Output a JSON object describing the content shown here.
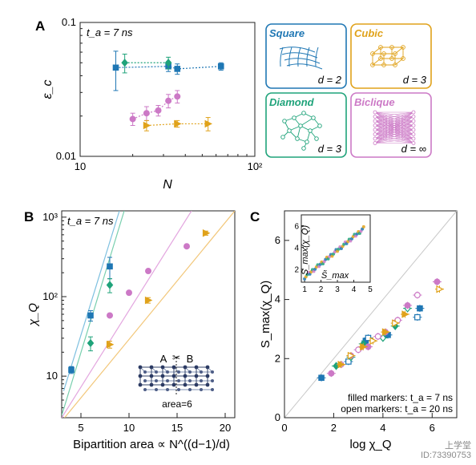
{
  "panels": {
    "A": {
      "letter": "A",
      "annotation": "t_a = 7 ns",
      "xlabel": "N",
      "ylabel": "ε_c",
      "x_ticks": [
        "10",
        "10²"
      ],
      "y_ticks": [
        "0.1",
        "0.01"
      ]
    },
    "B": {
      "letter": "B",
      "annotation": "t_a = 7 ns",
      "xlabel": "Bipartition area ∝ N^((d−1)/d)",
      "ylabel": "χ_Q",
      "x_ticks": [
        "5",
        "10",
        "15",
        "20"
      ],
      "y_ticks": [
        "10",
        "10²",
        "10³"
      ],
      "inset": {
        "left": "A",
        "right": "B",
        "area_label": "area=6"
      }
    },
    "C": {
      "letter": "C",
      "xlabel": "log χ_Q",
      "ylabel": "S_max(χ_Q)",
      "x_ticks": [
        "0",
        "2",
        "4",
        "6"
      ],
      "y_ticks": [
        "0",
        "2",
        "4",
        "6"
      ],
      "legend": [
        "filled markers: t_a = 7 ns",
        "open markers: t_a = 20 ns"
      ],
      "inset": {
        "xlabel": "S̃_max",
        "ylabel": "S_max(χ_Q)",
        "x_ticks": [
          "1",
          "2",
          "3",
          "4",
          "5"
        ],
        "y_ticks": [
          "2",
          "4",
          "6"
        ]
      }
    }
  },
  "geometries": [
    {
      "name": "Square",
      "dim": "d = 2",
      "color": "#1f77b4"
    },
    {
      "name": "Cubic",
      "dim": "d = 3",
      "color": "#e0a21a"
    },
    {
      "name": "Diamond",
      "dim": "d = 3",
      "color": "#1fa37a"
    },
    {
      "name": "Biclique",
      "dim": "d = ∞",
      "color": "#cc79c6"
    }
  ],
  "colors": {
    "square": "#1f77b4",
    "cubic": "#e0a21a",
    "diamond": "#1fa37a",
    "biclique": "#cc79c6"
  },
  "watermark": [
    "上学堂",
    "ID:73390753"
  ],
  "chart_data": [
    {
      "type": "scatter",
      "panel": "A",
      "xscale": "log",
      "yscale": "log",
      "xlim": [
        10,
        100
      ],
      "ylim": [
        0.01,
        0.1
      ],
      "series": [
        {
          "name": "Square",
          "x": [
            16,
            32,
            36,
            64
          ],
          "y": [
            0.046,
            0.047,
            0.045,
            0.047
          ],
          "err": [
            0.015,
            0.004,
            0.004,
            0.003
          ]
        },
        {
          "name": "Diamond",
          "x": [
            18,
            32
          ],
          "y": [
            0.05,
            0.05
          ],
          "err": [
            0.008,
            0.005
          ]
        },
        {
          "name": "Biclique",
          "x": [
            20,
            24,
            28,
            32,
            36
          ],
          "y": [
            0.019,
            0.021,
            0.022,
            0.026,
            0.028
          ],
          "err": [
            0.002,
            0.0025,
            0.002,
            0.003,
            0.003
          ]
        },
        {
          "name": "Cubic",
          "x": [
            24,
            36,
            54
          ],
          "y": [
            0.017,
            0.0175,
            0.0175
          ],
          "err": [
            0.0015,
            0.001,
            0.002
          ]
        }
      ]
    },
    {
      "type": "scatter",
      "panel": "B",
      "yscale": "log",
      "xlim": [
        3,
        21
      ],
      "ylim": [
        3,
        1200
      ],
      "series": [
        {
          "name": "Square",
          "x": [
            4,
            6,
            8
          ],
          "y": [
            12,
            58,
            240
          ],
          "err_rel": [
            0.1,
            0.15,
            0.3
          ]
        },
        {
          "name": "Diamond",
          "x": [
            6,
            8
          ],
          "y": [
            26,
            140
          ],
          "err_rel": [
            0.2,
            0.2
          ]
        },
        {
          "name": "Biclique",
          "x": [
            8,
            10,
            12,
            16
          ],
          "y": [
            58,
            112,
            210,
            430
          ],
          "err_rel": [
            0.05,
            0.05,
            0.05,
            0.05
          ]
        },
        {
          "name": "Cubic",
          "x": [
            8,
            12,
            18
          ],
          "y": [
            25,
            90,
            630
          ],
          "err_rel": [
            0.1,
            0.08,
            0.06
          ]
        }
      ],
      "fits": [
        {
          "name": "Square",
          "x": [
            3.2,
            9.0
          ],
          "y": [
            6.5,
            1200
          ]
        },
        {
          "name": "Diamond",
          "x": [
            3.0,
            9.5
          ],
          "y": [
            3.2,
            1200
          ]
        },
        {
          "name": "Biclique",
          "x": [
            3.0,
            16.5
          ],
          "y": [
            3.0,
            1200
          ]
        },
        {
          "name": "Cubic",
          "x": [
            3.3,
            21
          ],
          "y": [
            3.0,
            1200
          ]
        }
      ]
    },
    {
      "type": "scatter",
      "panel": "C",
      "xlim": [
        0,
        7
      ],
      "ylim": [
        0,
        7
      ],
      "diagonal": true,
      "series": [
        {
          "name": "Square",
          "x": [
            1.5,
            2.6,
            3.3,
            3.4,
            4.2,
            5.4,
            5.5
          ],
          "y": [
            1.35,
            1.9,
            2.6,
            2.7,
            2.8,
            3.4,
            3.7
          ]
        },
        {
          "name": "Diamond",
          "x": [
            2.1,
            2.7,
            3.2,
            4.0,
            4.5,
            5.0
          ],
          "y": [
            1.75,
            2.05,
            2.5,
            2.7,
            3.1,
            3.7
          ]
        },
        {
          "name": "Biclique",
          "x": [
            1.9,
            2.3,
            2.7,
            3.0,
            3.4,
            3.8,
            4.1,
            4.6,
            5.0,
            5.4,
            6.2
          ],
          "y": [
            1.5,
            1.8,
            2.1,
            2.3,
            2.4,
            2.75,
            2.9,
            3.3,
            3.8,
            4.15,
            4.6
          ]
        },
        {
          "name": "Cubic",
          "x": [
            2.3,
            2.7,
            3.2,
            3.6,
            4.1,
            4.5,
            4.9,
            6.3
          ],
          "y": [
            1.8,
            2.1,
            2.4,
            2.6,
            2.9,
            3.2,
            3.5,
            4.35
          ]
        }
      ]
    }
  ]
}
